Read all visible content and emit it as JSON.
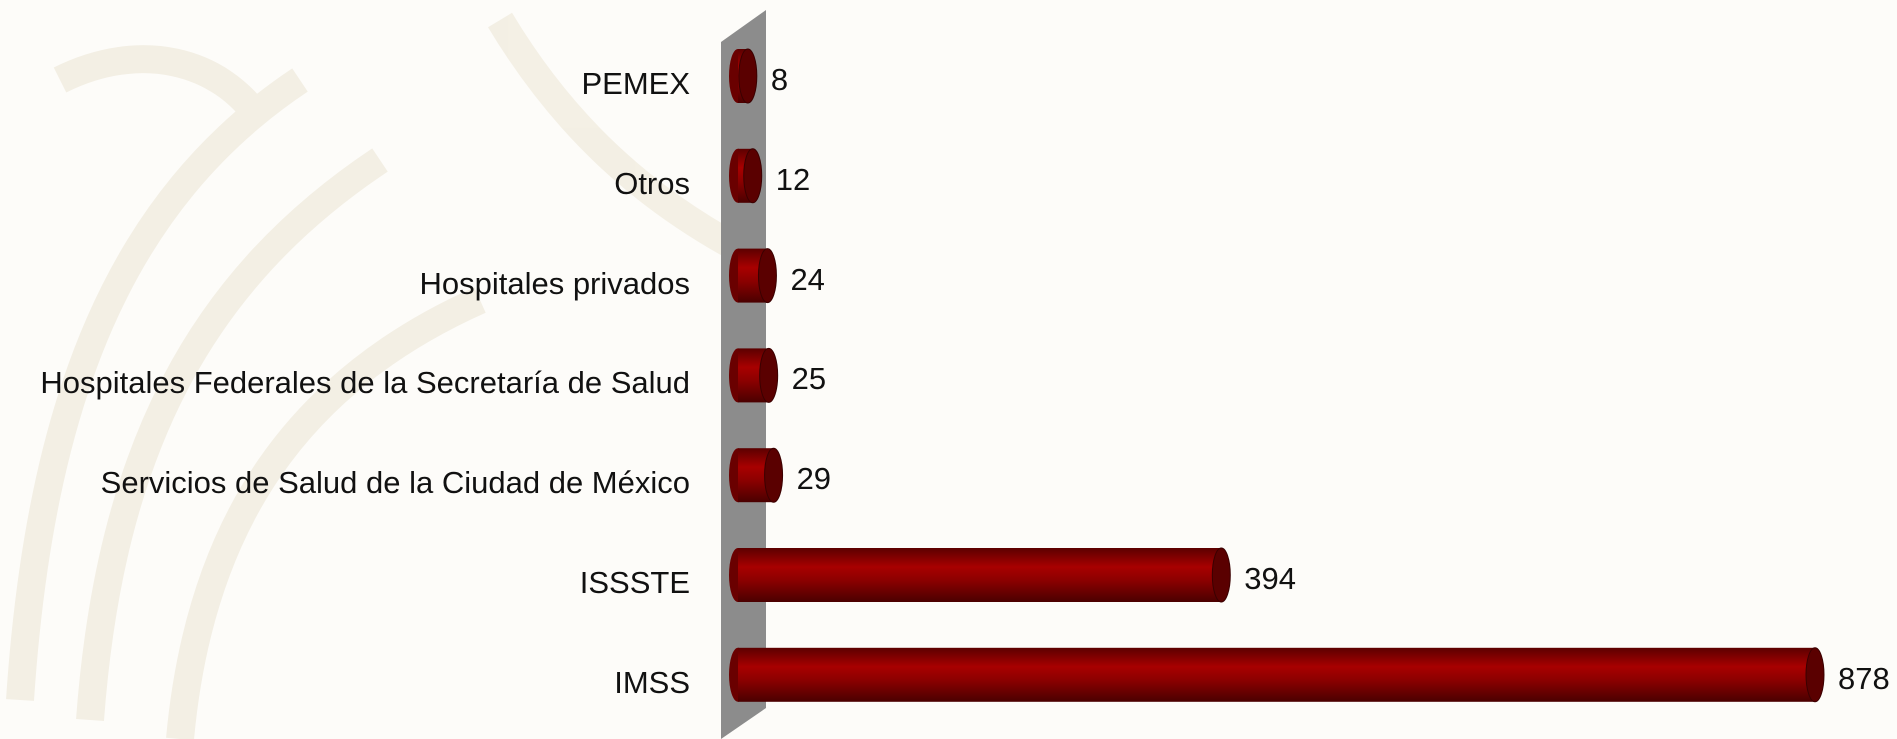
{
  "chart_data": {
    "type": "bar",
    "orientation": "horizontal",
    "color": "#8b0000",
    "categories": [
      "PEMEX",
      "Otros",
      "Hospitales privados",
      "Hospitales Federales de la Secretaría de Salud",
      "Servicios de Salud de la Ciudad de México",
      "ISSSTE",
      "IMSS"
    ],
    "values": [
      8,
      12,
      24,
      25,
      29,
      394,
      878
    ]
  }
}
